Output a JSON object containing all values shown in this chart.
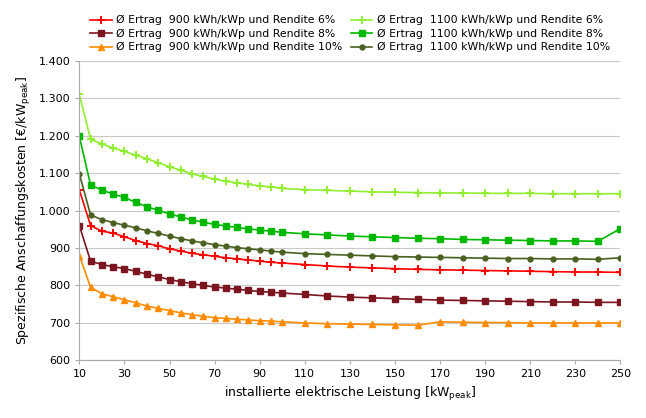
{
  "x": [
    10,
    15,
    20,
    25,
    30,
    35,
    40,
    45,
    50,
    55,
    60,
    65,
    70,
    75,
    80,
    85,
    90,
    95,
    100,
    110,
    120,
    130,
    140,
    150,
    160,
    170,
    180,
    190,
    200,
    210,
    220,
    230,
    240,
    250
  ],
  "series": [
    {
      "label": "Ø Ertrag  900 kWh/kWp und Rendite 6%",
      "color": "#ff0000",
      "marker": "+",
      "markevery": 1,
      "data": [
        1055,
        960,
        945,
        940,
        930,
        920,
        912,
        906,
        898,
        892,
        886,
        882,
        878,
        874,
        871,
        868,
        865,
        862,
        860,
        856,
        852,
        849,
        847,
        845,
        843,
        842,
        841,
        840,
        839,
        838,
        837,
        836,
        836,
        835
      ]
    },
    {
      "label": "Ø Ertrag  900 kWh/kWp und Rendite 8%",
      "color": "#7b1520",
      "marker": "s",
      "markevery": 1,
      "data": [
        960,
        865,
        856,
        850,
        845,
        838,
        830,
        823,
        816,
        810,
        805,
        800,
        796,
        793,
        790,
        787,
        784,
        782,
        780,
        776,
        772,
        769,
        767,
        765,
        763,
        761,
        760,
        759,
        758,
        757,
        756,
        756,
        755,
        755
      ]
    },
    {
      "label": "Ø Ertrag  900 kWh/kWp und Rendite 10%",
      "color": "#ff8c00",
      "marker": "^",
      "markevery": 1,
      "data": [
        880,
        795,
        778,
        770,
        762,
        754,
        745,
        739,
        733,
        727,
        722,
        718,
        714,
        712,
        710,
        708,
        706,
        705,
        703,
        700,
        698,
        697,
        696,
        695,
        694,
        703,
        702,
        701,
        701,
        700,
        700,
        700,
        700,
        700
      ]
    },
    {
      "label": "Ø Ertrag  1100 kWh/kWp und Rendite 6%",
      "color": "#90ee30",
      "marker": "+",
      "markevery": 1,
      "data": [
        1310,
        1190,
        1178,
        1167,
        1158,
        1148,
        1138,
        1128,
        1117,
        1108,
        1098,
        1091,
        1084,
        1078,
        1074,
        1070,
        1066,
        1063,
        1059,
        1056,
        1054,
        1052,
        1050,
        1049,
        1048,
        1047,
        1047,
        1046,
        1046,
        1046,
        1045,
        1045,
        1045,
        1045
      ]
    },
    {
      "label": "Ø Ertrag  1100 kWh/kWp und Rendite 8%",
      "color": "#00b800",
      "marker": "s",
      "markevery": 1,
      "data": [
        1198,
        1068,
        1055,
        1044,
        1035,
        1022,
        1010,
        1001,
        991,
        983,
        975,
        969,
        963,
        959,
        955,
        951,
        948,
        945,
        942,
        938,
        935,
        932,
        930,
        928,
        926,
        925,
        923,
        922,
        921,
        920,
        919,
        919,
        918,
        952
      ]
    },
    {
      "label": "Ø Ertrag  1100 kWh/kWp und Rendite 10%",
      "color": "#4a6020",
      "marker": "o",
      "markevery": 1,
      "data": [
        1098,
        988,
        976,
        968,
        961,
        954,
        946,
        939,
        932,
        925,
        919,
        914,
        909,
        905,
        901,
        898,
        895,
        892,
        889,
        885,
        883,
        881,
        879,
        877,
        876,
        875,
        874,
        873,
        872,
        872,
        871,
        871,
        870,
        874
      ]
    }
  ],
  "xlabel": "installierte elektrische Leistung [kW$_\\mathrm{peak}$]",
  "ylabel": "Spezifische Anschaffungskosten [€/kW$_\\mathrm{peak}$]",
  "ylim": [
    600,
    1400
  ],
  "xlim": [
    10,
    250
  ],
  "xticks": [
    10,
    30,
    50,
    70,
    90,
    110,
    130,
    150,
    170,
    190,
    210,
    230,
    250
  ],
  "yticks": [
    600,
    700,
    800,
    900,
    1000,
    1100,
    1200,
    1300,
    1400
  ],
  "background_color": "#ffffff",
  "grid_color": "#c8c8c8"
}
